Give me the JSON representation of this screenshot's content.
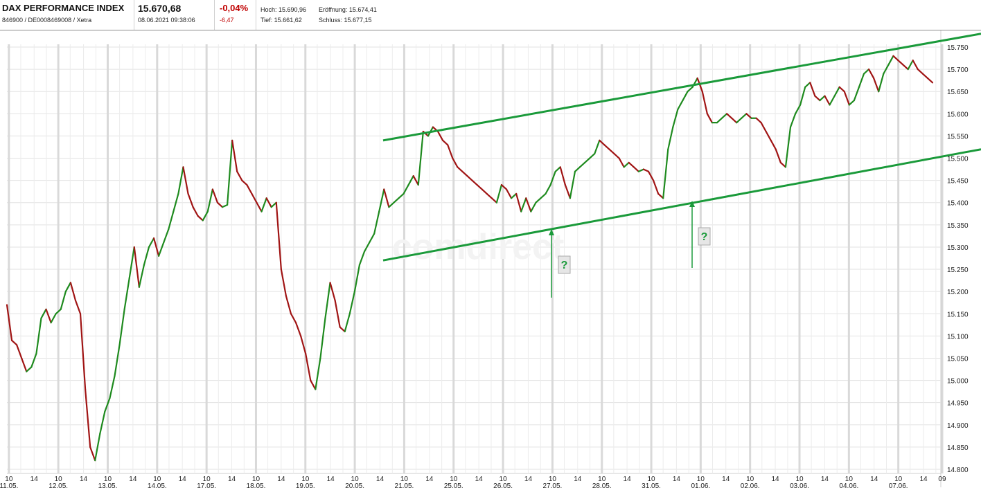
{
  "header": {
    "name": "DAX PERFORMANCE INDEX",
    "ident": "846900 / DE0008469008 / Xetra",
    "price": "15.670,68",
    "datetime": "08.06.2021 09:38:06",
    "change_pct": "-0,04%",
    "change_abs": "-6,47",
    "high": "Hoch: 15.690,96",
    "open": "Eröffnung: 15.674,41",
    "low": "Tief: 15.661,62",
    "close": "Schluss: 15.677,15"
  },
  "colors": {
    "up": "#1e8a1e",
    "down": "#a01414",
    "trend": "#1a9a3a",
    "negative": "#c00000"
  },
  "watermark": "comdirect",
  "annotations": [
    "?",
    "?"
  ],
  "chart_data": {
    "type": "line",
    "title": "DAX PERFORMANCE INDEX",
    "xlabel": "",
    "ylabel": "",
    "ylim": [
      14800,
      15750
    ],
    "y_ticks": [
      "15.750",
      "15.700",
      "15.650",
      "15.600",
      "15.550",
      "15.500",
      "15.450",
      "15.400",
      "15.350",
      "15.300",
      "15.250",
      "15.200",
      "15.150",
      "15.100",
      "15.050",
      "15.000",
      "14.950",
      "14.900",
      "14.850",
      "14.800"
    ],
    "days": [
      "11.05.",
      "12.05.",
      "13.05.",
      "14.05.",
      "17.05.",
      "18.05.",
      "19.05.",
      "20.05.",
      "21.05.",
      "25.05.",
      "26.05.",
      "27.05.",
      "28.05.",
      "31.05.",
      "01.06.",
      "02.06.",
      "03.06.",
      "04.06.",
      "07.06."
    ],
    "hour_labels": [
      "10",
      "14"
    ],
    "last_label": "09",
    "grid": true,
    "series": [
      {
        "values": [
          15170,
          15090,
          15080,
          15050,
          15020,
          15030,
          15060,
          15140,
          15160,
          15130,
          15150,
          15160,
          15200,
          15220,
          15180,
          15150,
          14980,
          14850,
          14820,
          14880,
          14930,
          14960,
          15010,
          15080,
          15160,
          15230,
          15300,
          15210,
          15260,
          15300,
          15320,
          15280,
          15310,
          15340,
          15380,
          15420,
          15480,
          15420,
          15390,
          15370,
          15360,
          15380,
          15430,
          15400,
          15390,
          15395,
          15540,
          15470,
          15450,
          15440,
          15420,
          15400,
          15380,
          15410,
          15390,
          15400,
          15250,
          15190,
          15150,
          15130,
          15100,
          15060,
          15000,
          14980,
          15050,
          15140,
          15220,
          15180,
          15120,
          15110,
          15150,
          15200,
          15260,
          15290,
          15310,
          15330,
          15380,
          15430,
          15390,
          15400,
          15410,
          15420,
          15440,
          15460,
          15440,
          15560,
          15550,
          15570,
          15560,
          15540,
          15530,
          15500,
          15480,
          15470,
          15460,
          15450,
          15440,
          15430,
          15420,
          15410,
          15400,
          15440,
          15430,
          15410,
          15420,
          15380,
          15410,
          15380,
          15400,
          15410,
          15420,
          15440,
          15470,
          15480,
          15440,
          15410,
          15470,
          15480,
          15490,
          15500,
          15510,
          15540,
          15530,
          15520,
          15510,
          15500,
          15480,
          15490,
          15480,
          15470,
          15475,
          15470,
          15450,
          15420,
          15410,
          15520,
          15570,
          15610,
          15630,
          15650,
          15660,
          15680,
          15650,
          15600,
          15580,
          15580,
          15590,
          15600,
          15590,
          15580,
          15590,
          15600,
          15590,
          15590,
          15580,
          15560,
          15540,
          15520,
          15490,
          15480,
          15570,
          15600,
          15620,
          15660,
          15670,
          15640,
          15630,
          15640,
          15620,
          15640,
          15660,
          15650,
          15620,
          15630,
          15660,
          15690,
          15700,
          15680,
          15650,
          15690,
          15710,
          15730,
          15720,
          15710,
          15700,
          15720,
          15700,
          15690,
          15680,
          15670
        ]
      }
    ],
    "trend_upper": [
      [
        15540,
        15780
      ]
    ],
    "trend_lower": [
      [
        15270,
        15520
      ]
    ]
  }
}
